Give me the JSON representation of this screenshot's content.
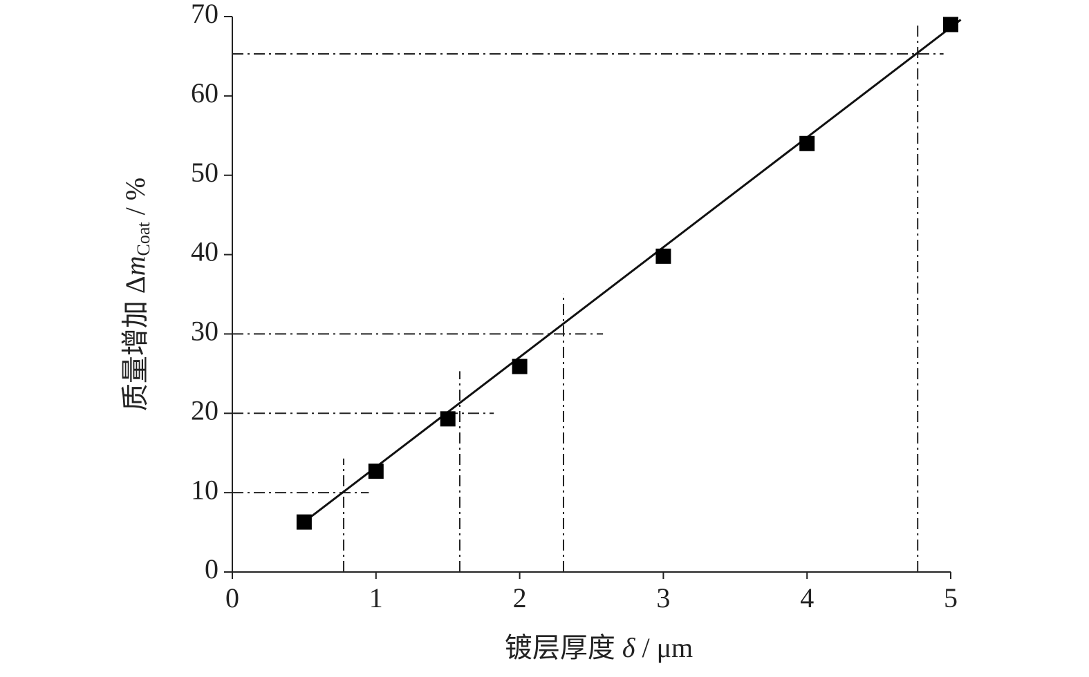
{
  "chart_data": {
    "type": "scatter",
    "x": [
      0.5,
      1,
      1.5,
      2,
      3,
      4,
      5
    ],
    "values": [
      6.3,
      12.7,
      19.3,
      25.9,
      39.8,
      54.0,
      69.0
    ],
    "color": "#000000",
    "xlim": [
      0,
      5
    ],
    "xticks": [
      0,
      1,
      2,
      3,
      4,
      5
    ],
    "ylim": [
      0,
      70
    ],
    "yticks": [
      0,
      10,
      20,
      30,
      40,
      50,
      60,
      70
    ],
    "xlabel": [
      "镀层厚度 ",
      "δ",
      " / μm"
    ],
    "ylabel": [
      "质量增加 Δ",
      "m",
      "Coat",
      " / %"
    ],
    "fit_line": {
      "x": [
        0.55,
        5.07
      ],
      "y": [
        7.0,
        69.6
      ]
    },
    "reference_lines": [
      {
        "x": [
          0,
          0.95
        ],
        "y": [
          10,
          10
        ]
      },
      {
        "x": [
          0.775,
          0.775
        ],
        "y": [
          0,
          14.3
        ]
      },
      {
        "x": [
          0,
          1.82
        ],
        "y": [
          20,
          20
        ]
      },
      {
        "x": [
          1.583,
          1.583
        ],
        "y": [
          0,
          25.3
        ]
      },
      {
        "x": [
          0,
          2.58
        ],
        "y": [
          30,
          30
        ]
      },
      {
        "x": [
          2.305,
          2.305
        ],
        "y": [
          0,
          35.1
        ]
      },
      {
        "x": [
          0,
          4.95
        ],
        "y": [
          65.3,
          65.3
        ]
      },
      {
        "x": [
          4.77,
          4.77
        ],
        "y": [
          0,
          69.3
        ]
      }
    ],
    "grid": false
  }
}
